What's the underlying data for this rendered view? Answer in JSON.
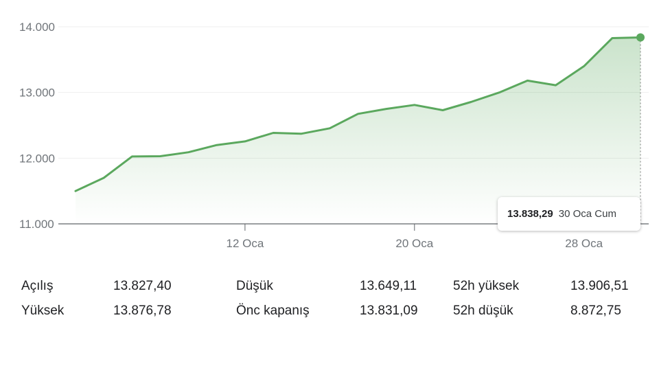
{
  "chart_data": {
    "type": "area",
    "y_ticks": [
      "14.000",
      "13.000",
      "12.000",
      "11.000"
    ],
    "y_tick_values": [
      14000,
      13000,
      12000,
      11000
    ],
    "ylim": [
      11000,
      14000
    ],
    "x_ticks": [
      {
        "index": 6,
        "label": "12 Oca"
      },
      {
        "index": 12,
        "label": "20 Oca"
      },
      {
        "index": 18,
        "label": "28 Oca"
      }
    ],
    "values": [
      11500,
      11700,
      12025,
      12030,
      12090,
      12200,
      12255,
      12385,
      12372,
      12455,
      12675,
      12750,
      12810,
      12730,
      12855,
      13000,
      13180,
      13110,
      13400,
      13828,
      13838.29
    ],
    "line_color": "#5ba85e",
    "grid": true
  },
  "tooltip": {
    "value": "13.838,29",
    "date": "30 Oca Cum"
  },
  "stats": {
    "rows": [
      [
        {
          "label": "Açılış",
          "value": "13.827,40"
        },
        {
          "label": "Düşük",
          "value": "13.649,11"
        },
        {
          "label": "52h yüksek",
          "value": "13.906,51"
        }
      ],
      [
        {
          "label": "Yüksek",
          "value": "13.876,78"
        },
        {
          "label": "Önc kapanış",
          "value": "13.831,09"
        },
        {
          "label": "52h düşük",
          "value": "8.872,75"
        }
      ]
    ]
  }
}
